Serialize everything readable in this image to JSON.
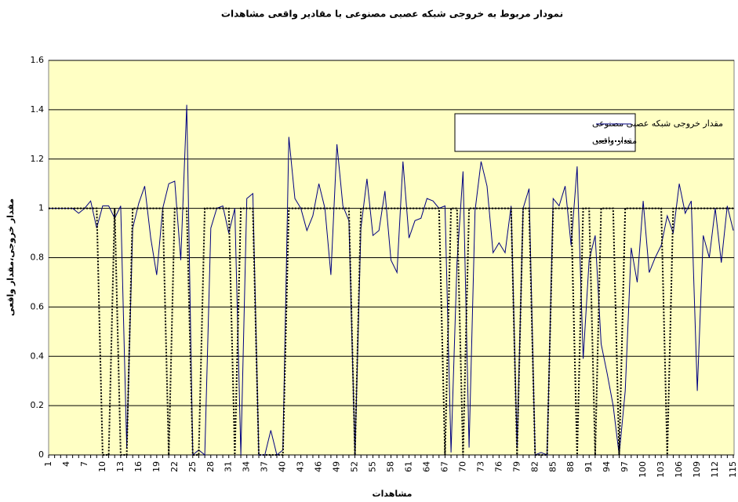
{
  "chart_data": {
    "type": "line",
    "title": "نمودار مربوط به خروجی شبکه عصبی مصنوعی با مقادیر واقعی مشاهدات",
    "x_label": "مشاهدات",
    "y_label": "مقدار خروجی،مقدار واقعی",
    "categories": [
      1,
      null,
      null,
      4,
      null,
      null,
      7,
      null,
      null,
      10,
      null,
      null,
      13,
      null,
      null,
      16,
      null,
      null,
      19,
      null,
      null,
      22,
      null,
      null,
      25,
      null,
      null,
      28,
      null,
      null,
      31,
      null,
      null,
      34,
      null,
      null,
      37,
      null,
      null,
      40,
      null,
      null,
      43,
      null,
      null,
      46,
      null,
      null,
      49,
      null,
      null,
      52,
      null,
      null,
      55,
      null,
      null,
      58,
      null,
      null,
      61,
      null,
      null,
      64,
      null,
      null,
      67,
      null,
      null,
      70,
      null,
      null,
      73,
      null,
      null,
      76,
      null,
      null,
      79,
      null,
      null,
      82,
      null,
      null,
      85,
      null,
      null,
      88,
      null,
      null,
      91,
      null,
      null,
      94,
      null,
      null,
      97,
      null,
      null,
      100,
      null,
      null,
      103,
      null,
      null,
      106,
      null,
      null,
      109,
      null,
      null,
      112,
      null,
      null,
      115
    ],
    "series": [
      {
        "name": "مقدار خروجی شبکه عصبی مصنوعی",
        "color": "#000080",
        "dash": "solid",
        "values": [
          1,
          1,
          1,
          1,
          1,
          0.98,
          1,
          1.03,
          0.92,
          1.01,
          1.01,
          0.96,
          1.01,
          0.03,
          0.92,
          1.02,
          1.09,
          0.88,
          0.73,
          1,
          1.1,
          1.11,
          0.79,
          1.42,
          0,
          0.02,
          0,
          0.92,
          1,
          1.01,
          0.9,
          1,
          0,
          1.04,
          1.06,
          0,
          0,
          0.1,
          0,
          0.02,
          1.29,
          1.04,
          1,
          0.91,
          0.97,
          1.1,
          1,
          0.73,
          1.26,
          1.01,
          0.95,
          0,
          0.92,
          1.12,
          0.89,
          0.91,
          1.07,
          0.79,
          0.74,
          1.19,
          0.88,
          0.95,
          0.96,
          1.04,
          1.03,
          1,
          1.01,
          0.01,
          0.78,
          1.15,
          0.03,
          0.99,
          1.19,
          1.09,
          0.82,
          0.86,
          0.82,
          1.01,
          0.03,
          1,
          1.08,
          0,
          0.01,
          0,
          1.04,
          1.01,
          1.09,
          0.85,
          1.17,
          0.39,
          0.79,
          0.89,
          0.45,
          0.33,
          0.2,
          0,
          0.26,
          0.84,
          0.7,
          1.03,
          0.74,
          0.8,
          0.85,
          0.97,
          0.9,
          1.1,
          0.98,
          1.03,
          0.26,
          0.89,
          0.8,
          1,
          0.78,
          1.01,
          0.91
        ]
      },
      {
        "name": "مقدار واقعی",
        "color": "#000000",
        "dash": "dotted",
        "values": [
          1,
          1,
          1,
          1,
          1,
          1,
          1,
          1,
          1,
          0,
          0,
          1,
          0,
          0,
          1,
          1,
          1,
          1,
          1,
          1,
          0,
          1,
          1,
          1,
          0,
          0,
          1,
          1,
          1,
          1,
          1,
          0,
          1,
          1,
          1,
          0,
          0,
          0,
          0,
          0,
          1,
          1,
          1,
          1,
          1,
          1,
          1,
          1,
          1,
          1,
          1,
          0,
          1,
          1,
          1,
          1,
          1,
          1,
          1,
          1,
          1,
          1,
          1,
          1,
          1,
          1,
          0,
          1,
          1,
          0,
          1,
          1,
          1,
          1,
          1,
          1,
          1,
          1,
          0,
          1,
          1,
          0,
          0,
          0,
          1,
          1,
          1,
          1,
          0,
          1,
          1,
          0,
          1,
          1,
          1,
          0,
          1,
          1,
          1,
          1,
          1,
          1,
          1,
          0,
          1,
          1,
          1,
          1,
          1,
          1,
          1,
          1,
          1,
          1,
          1
        ]
      }
    ],
    "ylim": [
      0,
      1.6
    ],
    "yticks": [
      0,
      0.2,
      0.4,
      0.6,
      0.8,
      1,
      1.2,
      1.4,
      1.6
    ],
    "grid": true,
    "legend": "upper right"
  }
}
